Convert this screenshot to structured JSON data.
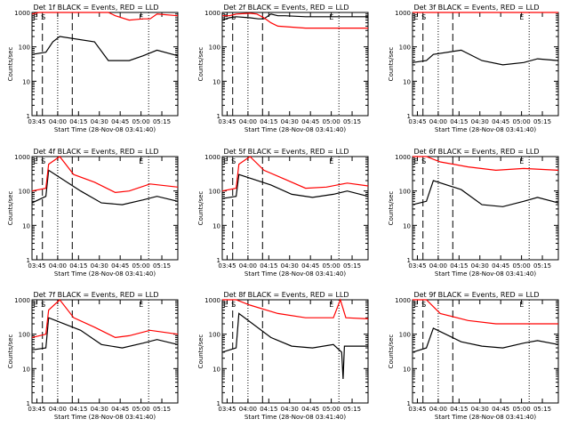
{
  "chart_data": [
    {
      "type": "line",
      "title": "Det 1f BLACK = Events, RED = LLD",
      "xlabel": "Start Time (28-Nov-08 03:41:40)",
      "ylabel": "Counts/sec",
      "x_ticks": [
        "03:45",
        "04:00",
        "04:15",
        "04:30",
        "04:45",
        "05:00",
        "05:15"
      ],
      "y_ticks": [
        "1",
        "10",
        "100",
        "1000"
      ],
      "yscale": "log",
      "ylim": [
        1,
        1000
      ],
      "markers": [
        "E",
        "S",
        "E"
      ],
      "series": [
        {
          "color": "#000000",
          "values": [
            [
              0,
              60
            ],
            [
              1,
              70
            ],
            [
              1.5,
              140
            ],
            [
              2,
              200
            ],
            [
              4.5,
              140
            ],
            [
              5.5,
              40
            ],
            [
              7,
              40
            ],
            [
              8,
              55
            ],
            [
              9,
              80
            ],
            [
              10.5,
              55
            ]
          ]
        },
        {
          "color": "#ff0000",
          "values": [
            [
              0,
              900
            ],
            [
              0.5,
              1000
            ],
            [
              1,
              1000
            ],
            [
              5.5,
              1000
            ],
            [
              6,
              800
            ],
            [
              7,
              600
            ],
            [
              8,
              650
            ],
            [
              8.5,
              650
            ],
            [
              9,
              900
            ],
            [
              10.5,
              800
            ]
          ]
        }
      ]
    },
    {
      "type": "line",
      "title": "Det 2f BLACK = Events, RED = LLD",
      "xlabel": "Start Time (28-Nov-08 03:41:40)",
      "ylabel": "Counts/sec",
      "x_ticks": [
        "03:45",
        "04:00",
        "04:15",
        "04:30",
        "04:45",
        "05:00",
        "05:15"
      ],
      "y_ticks": [
        "1",
        "10",
        "100",
        "1000"
      ],
      "yscale": "log",
      "ylim": [
        1,
        1000
      ],
      "markers": [
        "E",
        "S",
        "E"
      ],
      "series": [
        {
          "color": "#000000",
          "values": [
            [
              0,
              600
            ],
            [
              0.5,
              700
            ],
            [
              1,
              750
            ],
            [
              2,
              700
            ],
            [
              2.6,
              650
            ],
            [
              3,
              650
            ],
            [
              3.5,
              900
            ],
            [
              4,
              800
            ],
            [
              4.5,
              800
            ],
            [
              6,
              750
            ],
            [
              8,
              750
            ],
            [
              10.5,
              750
            ]
          ]
        },
        {
          "color": "#ff0000",
          "values": [
            [
              0,
              800
            ],
            [
              0.5,
              800
            ],
            [
              1,
              900
            ],
            [
              2,
              950
            ],
            [
              2.5,
              900
            ],
            [
              3,
              700
            ],
            [
              3.5,
              500
            ],
            [
              4,
              400
            ],
            [
              6,
              350
            ],
            [
              8,
              350
            ],
            [
              10.5,
              350
            ]
          ]
        }
      ]
    },
    {
      "type": "line",
      "title": "Det 3f BLACK = Events, RED = LLD",
      "xlabel": "Start Time (28-Nov-08 03:41:40)",
      "ylabel": "Counts/sec",
      "x_ticks": [
        "03:45",
        "04:00",
        "04:15",
        "04:30",
        "04:45",
        "05:00",
        "05:15"
      ],
      "y_ticks": [
        "1",
        "10",
        "100",
        "1000"
      ],
      "yscale": "log",
      "ylim": [
        1,
        1000
      ],
      "markers": [
        "E",
        "S",
        "E"
      ],
      "series": [
        {
          "color": "#000000",
          "values": [
            [
              0,
              35
            ],
            [
              1,
              40
            ],
            [
              1.5,
              60
            ],
            [
              3.5,
              80
            ],
            [
              5,
              40
            ],
            [
              6.5,
              30
            ],
            [
              8,
              35
            ],
            [
              9,
              45
            ],
            [
              10.5,
              40
            ]
          ]
        },
        {
          "color": "#ff0000",
          "values": [
            [
              0,
              1000
            ],
            [
              10.5,
              1000
            ]
          ]
        }
      ]
    },
    {
      "type": "line",
      "title": "Det 4f BLACK = Events, RED = LLD",
      "xlabel": "Start Time (28-Nov-08 03:41:40)",
      "ylabel": "Counts/sec",
      "x_ticks": [
        "03:45",
        "04:00",
        "04:15",
        "04:30",
        "04:45",
        "05:00",
        "05:15"
      ],
      "y_ticks": [
        "1",
        "10",
        "100",
        "1000"
      ],
      "yscale": "log",
      "ylim": [
        1,
        1000
      ],
      "markers": [
        "E",
        "S",
        "E"
      ],
      "series": [
        {
          "color": "#000000",
          "values": [
            [
              0,
              45
            ],
            [
              1,
              70
            ],
            [
              1.2,
              400
            ],
            [
              3.5,
              100
            ],
            [
              5,
              45
            ],
            [
              6.5,
              40
            ],
            [
              8,
              55
            ],
            [
              9,
              70
            ],
            [
              10.5,
              50
            ]
          ]
        },
        {
          "color": "#ff0000",
          "values": [
            [
              0,
              100
            ],
            [
              1,
              120
            ],
            [
              1.2,
              600
            ],
            [
              2,
              1000
            ],
            [
              3,
              300
            ],
            [
              4.5,
              180
            ],
            [
              6,
              90
            ],
            [
              7,
              100
            ],
            [
              8.5,
              160
            ],
            [
              10.5,
              130
            ]
          ]
        }
      ]
    },
    {
      "type": "line",
      "title": "Det 5f BLACK = Events, RED = LLD",
      "xlabel": "Start Time (28-Nov-08 03:41:40)",
      "ylabel": "Counts/sec",
      "x_ticks": [
        "03:45",
        "04:00",
        "04:15",
        "04:30",
        "04:45",
        "05:00",
        "05:15"
      ],
      "y_ticks": [
        "1",
        "10",
        "100",
        "1000"
      ],
      "yscale": "log",
      "ylim": [
        1,
        1000
      ],
      "markers": [
        "E",
        "S",
        "E"
      ],
      "series": [
        {
          "color": "#000000",
          "values": [
            [
              0,
              60
            ],
            [
              1,
              70
            ],
            [
              1.2,
              300
            ],
            [
              3.5,
              150
            ],
            [
              5,
              80
            ],
            [
              6.5,
              65
            ],
            [
              8,
              80
            ],
            [
              9,
              100
            ],
            [
              10.5,
              70
            ]
          ]
        },
        {
          "color": "#ff0000",
          "values": [
            [
              0,
              100
            ],
            [
              1,
              120
            ],
            [
              1.2,
              600
            ],
            [
              2,
              1000
            ],
            [
              3,
              400
            ],
            [
              4.5,
              220
            ],
            [
              6,
              120
            ],
            [
              7.5,
              130
            ],
            [
              9,
              170
            ],
            [
              10.5,
              140
            ]
          ]
        }
      ]
    },
    {
      "type": "line",
      "title": "Det 6f BLACK = Events, RED = LLD",
      "xlabel": "Start Time (28-Nov-08 03:41:40)",
      "ylabel": "Counts/sec",
      "x_ticks": [
        "03:45",
        "04:00",
        "04:15",
        "04:30",
        "04:45",
        "05:00",
        "05:15"
      ],
      "y_ticks": [
        "1",
        "10",
        "100",
        "1000"
      ],
      "yscale": "log",
      "ylim": [
        1,
        1000
      ],
      "markers": [
        "E",
        "S",
        "E"
      ],
      "series": [
        {
          "color": "#000000",
          "values": [
            [
              0,
              40
            ],
            [
              1,
              50
            ],
            [
              1.5,
              200
            ],
            [
              3.5,
              110
            ],
            [
              5,
              40
            ],
            [
              6.5,
              35
            ],
            [
              8,
              50
            ],
            [
              9,
              65
            ],
            [
              10.5,
              45
            ]
          ]
        },
        {
          "color": "#ff0000",
          "values": [
            [
              0,
              1000
            ],
            [
              1,
              1000
            ],
            [
              2,
              700
            ],
            [
              4,
              500
            ],
            [
              6,
              400
            ],
            [
              8,
              450
            ],
            [
              10.5,
              400
            ]
          ]
        }
      ]
    },
    {
      "type": "line",
      "title": "Det 7f BLACK = Events, RED = LLD",
      "xlabel": "Start Time (28-Nov-08 03:41:40)",
      "ylabel": "Counts/sec",
      "x_ticks": [
        "03:45",
        "04:00",
        "04:15",
        "04:30",
        "04:45",
        "05:00",
        "05:15"
      ],
      "y_ticks": [
        "1",
        "10",
        "100",
        "1000"
      ],
      "yscale": "log",
      "ylim": [
        1,
        1000
      ],
      "markers": [
        "E",
        "S",
        "E"
      ],
      "series": [
        {
          "color": "#000000",
          "values": [
            [
              0,
              35
            ],
            [
              1,
              40
            ],
            [
              1.2,
              300
            ],
            [
              3.5,
              130
            ],
            [
              5,
              50
            ],
            [
              6.5,
              40
            ],
            [
              8,
              55
            ],
            [
              9,
              70
            ],
            [
              10.5,
              50
            ]
          ]
        },
        {
          "color": "#ff0000",
          "values": [
            [
              0,
              80
            ],
            [
              1,
              100
            ],
            [
              1.2,
              500
            ],
            [
              2,
              1000
            ],
            [
              3,
              300
            ],
            [
              4.5,
              160
            ],
            [
              6,
              80
            ],
            [
              7,
              90
            ],
            [
              8.5,
              130
            ],
            [
              10.5,
              100
            ]
          ]
        }
      ]
    },
    {
      "type": "line",
      "title": "Det 8f BLACK = Events, RED = LLD",
      "xlabel": "Start Time (28-Nov-08 03:41:40)",
      "ylabel": "Counts/sec",
      "x_ticks": [
        "03:45",
        "04:00",
        "04:15",
        "04:30",
        "04:45",
        "05:00",
        "05:15"
      ],
      "y_ticks": [
        "1",
        "10",
        "100",
        "1000"
      ],
      "yscale": "log",
      "ylim": [
        1,
        1000
      ],
      "markers": [
        "E",
        "S",
        "E"
      ],
      "series": [
        {
          "color": "#000000",
          "values": [
            [
              0,
              30
            ],
            [
              1,
              40
            ],
            [
              1.2,
              400
            ],
            [
              3.5,
              80
            ],
            [
              5,
              45
            ],
            [
              6.5,
              40
            ],
            [
              8,
              50
            ],
            [
              8.6,
              30
            ],
            [
              8.7,
              5
            ],
            [
              8.8,
              45
            ],
            [
              10.5,
              45
            ]
          ]
        },
        {
          "color": "#ff0000",
          "values": [
            [
              0,
              1000
            ],
            [
              1,
              1000
            ],
            [
              2,
              700
            ],
            [
              4,
              400
            ],
            [
              6,
              300
            ],
            [
              8,
              300
            ],
            [
              8.5,
              1000
            ],
            [
              8.9,
              300
            ],
            [
              10.5,
              280
            ]
          ]
        }
      ]
    },
    {
      "type": "line",
      "title": "Det 9f BLACK = Events, RED = LLD",
      "xlabel": "Start Time (28-Nov-08 03:41:40)",
      "ylabel": "Counts/sec",
      "x_ticks": [
        "03:45",
        "04:00",
        "04:15",
        "04:30",
        "04:45",
        "05:00",
        "05:15"
      ],
      "y_ticks": [
        "1",
        "10",
        "100",
        "1000"
      ],
      "yscale": "log",
      "ylim": [
        1,
        1000
      ],
      "markers": [
        "E",
        "S",
        "E"
      ],
      "series": [
        {
          "color": "#000000",
          "values": [
            [
              0,
              30
            ],
            [
              1,
              40
            ],
            [
              1.5,
              150
            ],
            [
              3.5,
              60
            ],
            [
              5,
              45
            ],
            [
              6.5,
              40
            ],
            [
              8,
              55
            ],
            [
              9,
              65
            ],
            [
              10.5,
              50
            ]
          ]
        },
        {
          "color": "#ff0000",
          "values": [
            [
              0,
              1000
            ],
            [
              1,
              1000
            ],
            [
              2,
              400
            ],
            [
              4,
              250
            ],
            [
              6,
              200
            ],
            [
              8,
              200
            ],
            [
              10.5,
              200
            ]
          ]
        }
      ]
    }
  ]
}
